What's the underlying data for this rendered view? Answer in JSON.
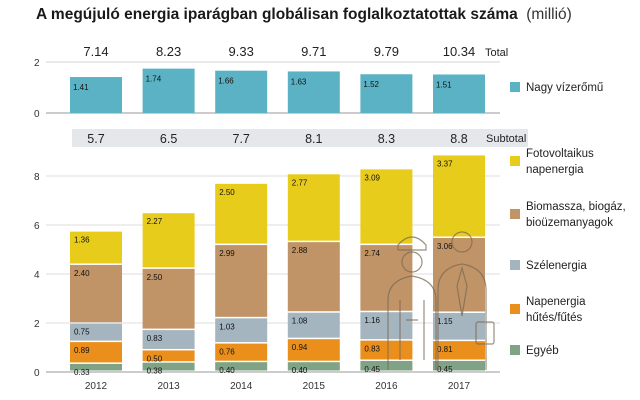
{
  "title": "A megújuló energia iparágban globálisan foglalkoztatottak száma",
  "unit": "(millió)",
  "chart_data": [
    {
      "type": "bar",
      "categories": [
        "2012",
        "2013",
        "2014",
        "2015",
        "2016",
        "2017"
      ],
      "series": [
        {
          "name": "Nagy vízerőmű",
          "values": [
            1.41,
            1.74,
            1.66,
            1.63,
            1.52,
            1.51
          ],
          "color": "#5bb2c4"
        }
      ],
      "totals": [
        7.14,
        8.23,
        9.33,
        9.71,
        9.79,
        10.34
      ],
      "totals_label": "Total",
      "ylim": [
        0,
        2
      ],
      "yticks": [
        0,
        2
      ]
    },
    {
      "type": "bar",
      "stacked": true,
      "categories": [
        "2012",
        "2013",
        "2014",
        "2015",
        "2016",
        "2017"
      ],
      "series": [
        {
          "name": "Egyéb",
          "values": [
            0.33,
            0.38,
            0.4,
            0.4,
            0.45,
            0.45
          ],
          "color": "#7fa384"
        },
        {
          "name": "Napenergia hűtés/fűtés",
          "values": [
            0.89,
            0.5,
            0.76,
            0.94,
            0.83,
            0.81
          ],
          "color": "#ea8f1c"
        },
        {
          "name": "Szélenergia",
          "values": [
            0.75,
            0.83,
            1.03,
            1.08,
            1.16,
            1.15
          ],
          "color": "#a5b5c0"
        },
        {
          "name": "Biomassza, biogáz, bioüzemanyagok",
          "values": [
            2.4,
            2.5,
            2.99,
            2.88,
            2.74,
            3.06
          ],
          "color": "#c09466"
        },
        {
          "name": "Fotovoltaikus napenergia",
          "values": [
            1.36,
            2.27,
            2.5,
            2.77,
            3.09,
            3.37
          ],
          "color": "#e8cc1c"
        }
      ],
      "subtotals": [
        "5.7",
        "6.5",
        "7.7",
        "8.1",
        "8.3",
        "8.8"
      ],
      "subtotals_label": "Subtotal",
      "ylim": [
        0,
        9
      ],
      "yticks": [
        0,
        2,
        4,
        6,
        8
      ]
    }
  ],
  "legend": [
    {
      "lines": [
        "Nagy vízerőmű"
      ],
      "color": "#5bb2c4"
    },
    {
      "lines": [
        "Fotovoltaikus",
        "napenergia"
      ],
      "color": "#e8cc1c"
    },
    {
      "lines": [
        "Biomassza, biogáz,",
        "bioüzemanyagok"
      ],
      "color": "#c09466"
    },
    {
      "lines": [
        "Szélenergia"
      ],
      "color": "#a5b5c0"
    },
    {
      "lines": [
        "Napenergia",
        "hűtés/fűtés"
      ],
      "color": "#ea8f1c"
    },
    {
      "lines": [
        "Egyéb"
      ],
      "color": "#7fa384"
    }
  ]
}
